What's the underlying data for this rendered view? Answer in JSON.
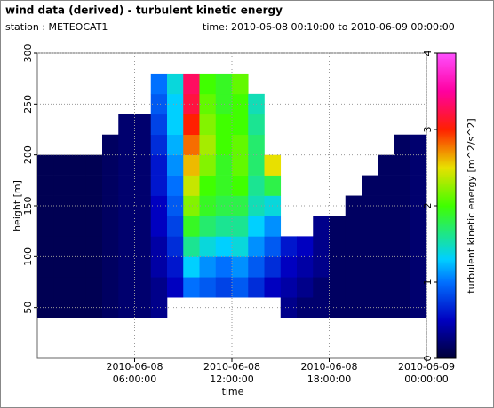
{
  "chart_data": {
    "type": "heatmap",
    "title": "wind data (derived) - turbulent kinetic energy",
    "station": "station : METEOCAT1",
    "time_range": "time: 2010-06-08 00:10:00 to 2010-06-09 00:00:00",
    "xlabel": "time",
    "ylabel": "height [m]",
    "x": [
      0,
      1,
      2,
      3,
      4,
      5,
      6,
      7,
      8,
      9,
      10,
      11,
      12,
      13,
      14,
      15,
      16,
      17,
      18,
      19,
      20,
      21,
      22,
      23,
      24
    ],
    "y": [
      40,
      60,
      80,
      100,
      120,
      140,
      160,
      180,
      200,
      220,
      240,
      260,
      280
    ],
    "values": [
      [
        0.1,
        0.1,
        0.1,
        0.1,
        0.1,
        0.1,
        0.1,
        0.1,
        null,
        null,
        null,
        null
      ],
      [
        0.1,
        0.1,
        0.1,
        0.1,
        0.1,
        0.1,
        0.1,
        0.1,
        null,
        null,
        null,
        null
      ],
      [
        0.1,
        0.1,
        0.1,
        0.1,
        0.1,
        0.1,
        0.1,
        0.1,
        null,
        null,
        null,
        null
      ],
      [
        0.1,
        0.1,
        0.1,
        0.1,
        0.1,
        0.1,
        0.1,
        0.1,
        null,
        null,
        null,
        null
      ],
      [
        0.15,
        0.15,
        0.15,
        0.15,
        0.15,
        0.15,
        0.15,
        0.15,
        0.15,
        null,
        null,
        null
      ],
      [
        0.2,
        0.2,
        0.2,
        0.2,
        0.2,
        0.2,
        0.2,
        0.2,
        0.2,
        0.2,
        null,
        null
      ],
      [
        0.2,
        0.2,
        0.2,
        0.2,
        0.2,
        0.2,
        0.2,
        0.2,
        0.2,
        0.2,
        null,
        null
      ],
      [
        0.3,
        0.3,
        0.4,
        0.4,
        0.5,
        0.5,
        0.6,
        0.6,
        0.7,
        0.8,
        0.9,
        1.0
      ],
      [
        null,
        0.5,
        0.6,
        0.7,
        0.8,
        0.9,
        1.0,
        1.1,
        1.2,
        1.3,
        1.3,
        1.4
      ],
      [
        null,
        1.0,
        1.3,
        1.6,
        1.9,
        2.2,
        2.4,
        2.6,
        2.8,
        3.0,
        3.2,
        3.3
      ],
      [
        null,
        0.9,
        1.1,
        1.4,
        1.7,
        1.9,
        2.0,
        2.2,
        2.3,
        2.2,
        2.1,
        2.0
      ],
      [
        null,
        0.8,
        1.0,
        1.3,
        1.6,
        1.8,
        1.9,
        1.9,
        2.0,
        2.0,
        1.9,
        1.9
      ],
      [
        null,
        0.9,
        1.1,
        1.4,
        1.6,
        1.8,
        2.0,
        2.1,
        2.1,
        2.0,
        2.0,
        2.1
      ],
      [
        null,
        0.7,
        0.9,
        1.1,
        1.3,
        1.5,
        1.6,
        1.7,
        1.7,
        1.6,
        1.5,
        null
      ],
      [
        null,
        0.5,
        0.7,
        0.9,
        1.1,
        1.4,
        1.8,
        2.5,
        null,
        null,
        null,
        null
      ],
      [
        0.3,
        0.4,
        0.5,
        0.6,
        null,
        null,
        null,
        null,
        null,
        null,
        null,
        null
      ],
      [
        0.2,
        0.3,
        0.4,
        0.5,
        null,
        null,
        null,
        null,
        null,
        null,
        null,
        null
      ],
      [
        0.2,
        0.2,
        0.3,
        0.3,
        0.3,
        null,
        null,
        null,
        null,
        null,
        null,
        null
      ],
      [
        0.15,
        0.15,
        0.15,
        0.15,
        0.15,
        null,
        null,
        null,
        null,
        null,
        null,
        null
      ],
      [
        0.15,
        0.15,
        0.15,
        0.15,
        0.15,
        0.15,
        null,
        null,
        null,
        null,
        null,
        null
      ],
      [
        0.15,
        0.15,
        0.15,
        0.15,
        0.15,
        0.15,
        0.15,
        null,
        null,
        null,
        null,
        null
      ],
      [
        0.15,
        0.15,
        0.15,
        0.15,
        0.15,
        0.15,
        0.15,
        0.15,
        null,
        null,
        null,
        null
      ],
      [
        0.15,
        0.15,
        0.15,
        0.15,
        0.15,
        0.15,
        0.15,
        0.15,
        0.15,
        null,
        null,
        null
      ],
      [
        0.2,
        0.2,
        0.2,
        0.2,
        0.2,
        0.2,
        0.2,
        0.2,
        0.2,
        null,
        null,
        null
      ]
    ],
    "xlim": [
      0,
      24
    ],
    "xticks": [
      {
        "value": 6,
        "label": "2010-06-08\n06:00:00"
      },
      {
        "value": 12,
        "label": "2010-06-08\n12:00:00"
      },
      {
        "value": 18,
        "label": "2010-06-08\n18:00:00"
      },
      {
        "value": 24,
        "label": "2010-06-09\n00:00:00"
      }
    ],
    "ylim": [
      0,
      300
    ],
    "yticks": [
      50,
      100,
      150,
      200,
      250,
      300
    ],
    "grid": true,
    "colorscale": [
      [
        0,
        "#000038"
      ],
      [
        0.5,
        "#0000c0"
      ],
      [
        1,
        "#0070ff"
      ],
      [
        1.3,
        "#00d0ff"
      ],
      [
        2,
        "#40ff00"
      ],
      [
        2.5,
        "#e8e000"
      ],
      [
        3,
        "#ff2000"
      ],
      [
        3.5,
        "#ff00a0"
      ],
      [
        4,
        "#ff50ff"
      ]
    ],
    "colorbar": {
      "label": "turbulent kinetic energy [m^2/s^2]",
      "lim": [
        0,
        4
      ],
      "ticks": [
        0,
        1,
        2,
        3,
        4
      ]
    }
  }
}
